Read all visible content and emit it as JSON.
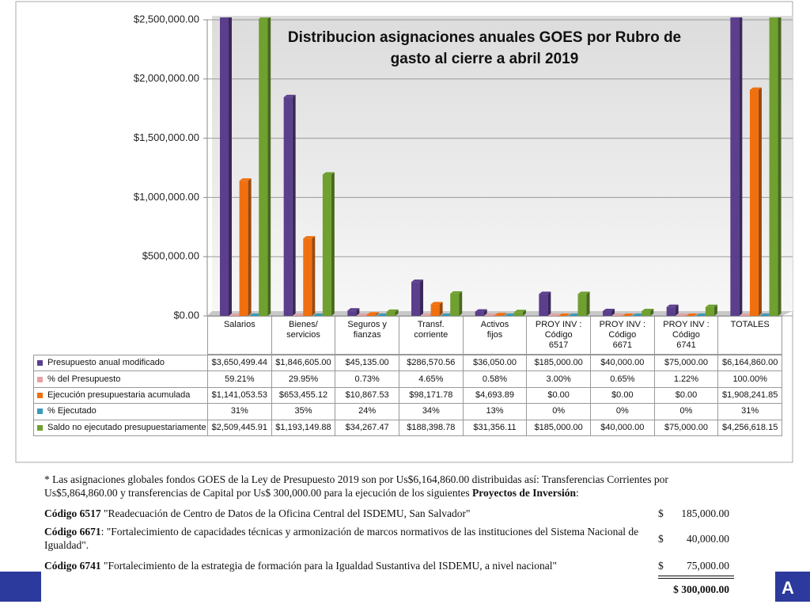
{
  "chart_data": {
    "type": "bar",
    "title": "Distribucion asignaciones anuales GOES por Rubro de gasto al cierre a abril 2019",
    "categories": [
      "Salarios",
      "Bienes/\nservicios",
      "Seguros y\nfianzas",
      "Transf.\ncorriente",
      "Activos\nfijos",
      "PROY INV :\nCódigo\n6517",
      "PROY INV :\nCódigo\n6671",
      "PROY INV :\nCódigo\n6741",
      "TOTALES"
    ],
    "ylim": [
      0,
      2500000
    ],
    "yticks": [
      {
        "value": 0,
        "label": "$0.00"
      },
      {
        "value": 500000,
        "label": "$500,000.00"
      },
      {
        "value": 1000000,
        "label": "$1,000,000.00"
      },
      {
        "value": 1500000,
        "label": "$1,500,000.00"
      },
      {
        "value": 2000000,
        "label": "$2,000,000.00"
      },
      {
        "value": 2500000,
        "label": "$2,500,000.00"
      }
    ],
    "grid": true,
    "series": [
      {
        "name": "Presupuesto anual modificado",
        "color": "#5b3f8c",
        "values": [
          3650499.44,
          1846605.0,
          45135.0,
          286570.56,
          36050.0,
          185000.0,
          40000.0,
          75000.0,
          6164860.0
        ],
        "value_labels": [
          "$3,650,499.44",
          "$1,846,605.00",
          "$45,135.00",
          "$286,570.56",
          "$36,050.00",
          "$185,000.00",
          "$40,000.00",
          "$75,000.00",
          "$6,164,860.00"
        ]
      },
      {
        "name": "% del Presupuesto",
        "color": "#e8a0a0",
        "values": [
          59.21,
          29.95,
          0.73,
          4.65,
          0.58,
          3.0,
          0.65,
          1.22,
          100.0
        ],
        "value_labels": [
          "59.21%",
          "29.95%",
          "0.73%",
          "4.65%",
          "0.58%",
          "3.00%",
          "0.65%",
          "1.22%",
          "100.00%"
        ]
      },
      {
        "name": "Ejecución presupuestaria acumulada",
        "color": "#f07010",
        "values": [
          1141053.53,
          653455.12,
          10867.53,
          98171.78,
          4693.89,
          0,
          0,
          0,
          1908241.85
        ],
        "value_labels": [
          "$1,141,053.53",
          "$653,455.12",
          "$10,867.53",
          "$98,171.78",
          "$4,693.89",
          "$0.00",
          "$0.00",
          "$0.00",
          "$1,908,241.85"
        ]
      },
      {
        "name": "% Ejecutado",
        "color": "#3a9ab8",
        "values": [
          31,
          35,
          24,
          34,
          13,
          0,
          0,
          0,
          31
        ],
        "value_labels": [
          "31%",
          "35%",
          "24%",
          "34%",
          "13%",
          "0%",
          "0%",
          "0%",
          "31%"
        ]
      },
      {
        "name": "Saldo no ejecutado presupuestariamente",
        "color": "#6fa030",
        "values": [
          2509445.91,
          1193149.88,
          34267.47,
          188398.78,
          31356.11,
          185000.0,
          40000.0,
          75000.0,
          4256618.15
        ],
        "value_labels": [
          "$2,509,445.91",
          "$1,193,149.88",
          "$34,267.47",
          "$188,398.78",
          "$31,356.11",
          "$185,000.00",
          "$40,000.00",
          "$75,000.00",
          "$4,256,618.15"
        ]
      }
    ]
  },
  "notes": {
    "intro": "* Las asignaciones globales fondos GOES de la Ley de Presupuesto 2019 son por Us$6,164,860.00 distribuidas así: Transferencias Corrientes por Us$5,864,860.00 y transferencias de Capital por Us$ 300,000.00 para la ejecución de los siguientes",
    "intro_bold": "Proyectos de Inversión",
    "intro_end": ":",
    "items": [
      {
        "code": "Código 6517",
        "text": " \"Readecuación de Centro de Datos de la Oficina Central del ISDEMU, San Salvador\"",
        "currency": "$",
        "amount": "185,000.00"
      },
      {
        "code": "Código 6671",
        "text": ": \"Fortalecimiento de capacidades técnicas y armonización de marcos normativos de las instituciones del Sistema Nacional de Igualdad\".",
        "currency": "$",
        "amount": "40,000.00"
      },
      {
        "code": "Código 6741",
        "text": " \"Fortalecimiento de la estrategia de formación para la Igualdad Sustantiva del ISDEMU, a nivel nacional\"",
        "currency": "$",
        "amount": "75,000.00"
      }
    ],
    "total": "$ 300,000.00"
  }
}
